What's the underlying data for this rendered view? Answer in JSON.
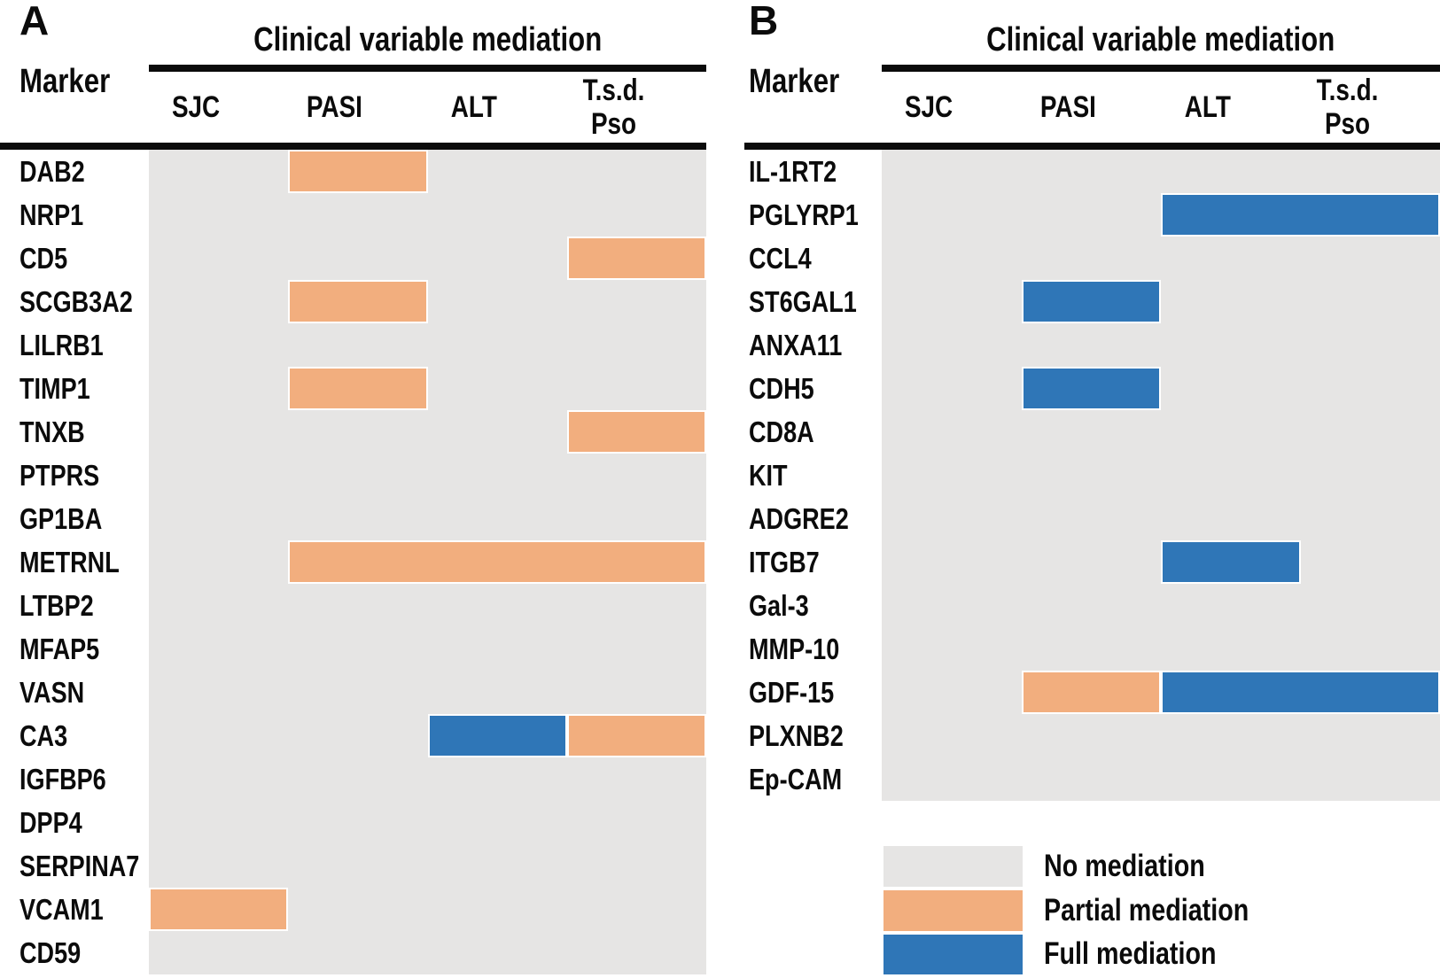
{
  "colors": {
    "none": "#E6E5E4",
    "partial": "#F2AE7E",
    "full": "#2F76B7",
    "rule_line": "#0B0B0B",
    "text": "#0B0B0B",
    "background": "#FFFFFF"
  },
  "legend": {
    "items": [
      {
        "label": "No mediation",
        "value": "none"
      },
      {
        "label": "Partial mediation",
        "value": "partial"
      },
      {
        "label": "Full mediation",
        "value": "full"
      }
    ]
  },
  "chart_data": [
    {
      "type": "heatmap",
      "panel": "A",
      "title": "Clinical variable mediation",
      "marker_header": "Marker",
      "x_categories": [
        "SJC",
        "PASI",
        "ALT",
        "T.s.d. Pso"
      ],
      "x_categories_display": [
        "SJC",
        "PASI",
        "ALT",
        "T.s.d.\nPso"
      ],
      "y_categories": [
        "DAB2",
        "NRP1",
        "CD5",
        "SCGB3A2",
        "LILRB1",
        "TIMP1",
        "TNXB",
        "PTPRS",
        "GP1BA",
        "METRNL",
        "LTBP2",
        "MFAP5",
        "VASN",
        "CA3",
        "IGFBP6",
        "DPP4",
        "SERPINA7",
        "VCAM1",
        "CD59"
      ],
      "value_legend": {
        "none": "No mediation",
        "partial": "Partial mediation",
        "full": "Full mediation"
      },
      "values": [
        [
          "none",
          "partial",
          "none",
          "none"
        ],
        [
          "none",
          "none",
          "none",
          "none"
        ],
        [
          "none",
          "none",
          "none",
          "partial"
        ],
        [
          "none",
          "partial",
          "none",
          "none"
        ],
        [
          "none",
          "none",
          "none",
          "none"
        ],
        [
          "none",
          "partial",
          "none",
          "none"
        ],
        [
          "none",
          "none",
          "none",
          "partial"
        ],
        [
          "none",
          "none",
          "none",
          "none"
        ],
        [
          "none",
          "none",
          "none",
          "none"
        ],
        [
          "none",
          "partial",
          "partial",
          "partial"
        ],
        [
          "none",
          "none",
          "none",
          "none"
        ],
        [
          "none",
          "none",
          "none",
          "none"
        ],
        [
          "none",
          "none",
          "none",
          "none"
        ],
        [
          "none",
          "none",
          "full",
          "partial"
        ],
        [
          "none",
          "none",
          "none",
          "none"
        ],
        [
          "none",
          "none",
          "none",
          "none"
        ],
        [
          "none",
          "none",
          "none",
          "none"
        ],
        [
          "partial",
          "none",
          "none",
          "none"
        ],
        [
          "none",
          "none",
          "none",
          "none"
        ]
      ]
    },
    {
      "type": "heatmap",
      "panel": "B",
      "title": "Clinical variable mediation",
      "marker_header": "Marker",
      "x_categories": [
        "SJC",
        "PASI",
        "ALT",
        "T.s.d. Pso"
      ],
      "x_categories_display": [
        "SJC",
        "PASI",
        "ALT",
        "T.s.d.\nPso"
      ],
      "y_categories": [
        "IL-1RT2",
        "PGLYRP1",
        "CCL4",
        "ST6GAL1",
        "ANXA11",
        "CDH5",
        "CD8A",
        "KIT",
        "ADGRE2",
        "ITGB7",
        "Gal-3",
        "MMP-10",
        "GDF-15",
        "PLXNB2",
        "Ep-CAM"
      ],
      "value_legend": {
        "none": "No mediation",
        "partial": "Partial mediation",
        "full": "Full mediation"
      },
      "values": [
        [
          "none",
          "none",
          "none",
          "none"
        ],
        [
          "none",
          "none",
          "full",
          "full"
        ],
        [
          "none",
          "none",
          "none",
          "none"
        ],
        [
          "none",
          "full",
          "none",
          "none"
        ],
        [
          "none",
          "none",
          "none",
          "none"
        ],
        [
          "none",
          "full",
          "none",
          "none"
        ],
        [
          "none",
          "none",
          "none",
          "none"
        ],
        [
          "none",
          "none",
          "none",
          "none"
        ],
        [
          "none",
          "none",
          "none",
          "none"
        ],
        [
          "none",
          "none",
          "full",
          "none"
        ],
        [
          "none",
          "none",
          "none",
          "none"
        ],
        [
          "none",
          "none",
          "none",
          "none"
        ],
        [
          "none",
          "partial",
          "full",
          "full"
        ],
        [
          "none",
          "none",
          "none",
          "none"
        ],
        [
          "none",
          "none",
          "none",
          "none"
        ]
      ]
    }
  ]
}
